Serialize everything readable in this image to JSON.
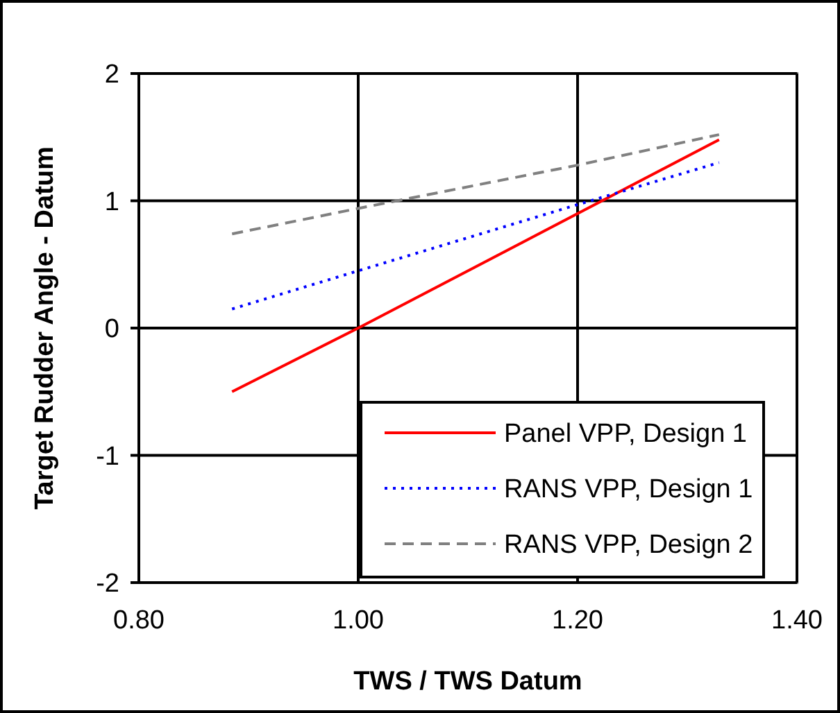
{
  "chart_data": {
    "type": "line",
    "xlabel": "TWS / TWS Datum",
    "ylabel": "Target Rudder Angle - Datum",
    "xlim": [
      0.8,
      1.4
    ],
    "xticks": [
      {
        "value": 0.8,
        "label": "0.80"
      },
      {
        "value": 1.0,
        "label": "1.00"
      },
      {
        "value": 1.2,
        "label": "1.20"
      },
      {
        "value": 1.4,
        "label": "1.40"
      }
    ],
    "ylim": [
      -2,
      2
    ],
    "yticks": [
      -2,
      -1,
      0,
      1,
      2
    ],
    "grid": true,
    "legend": "bottom right",
    "marker": "none",
    "series": [
      {
        "name": "Panel VPP, Design 1",
        "color": "#ff0000",
        "line_style": "solid",
        "x": [
          0.885,
          1.0,
          1.329
        ],
        "values": [
          -0.5,
          0.0,
          1.48
        ]
      },
      {
        "name": "RANS VPP, Design 1",
        "color": "#0000ff",
        "line_style": "dotted",
        "x": [
          0.885,
          1.0,
          1.1,
          1.2,
          1.329
        ],
        "values": [
          0.15,
          0.45,
          0.71,
          0.97,
          1.3
        ]
      },
      {
        "name": "RANS VPP, Design 2",
        "color": "#808080",
        "line_style": "dashed",
        "x": [
          0.885,
          1.0,
          1.2,
          1.329
        ],
        "values": [
          0.74,
          0.94,
          1.28,
          1.52
        ]
      }
    ]
  }
}
